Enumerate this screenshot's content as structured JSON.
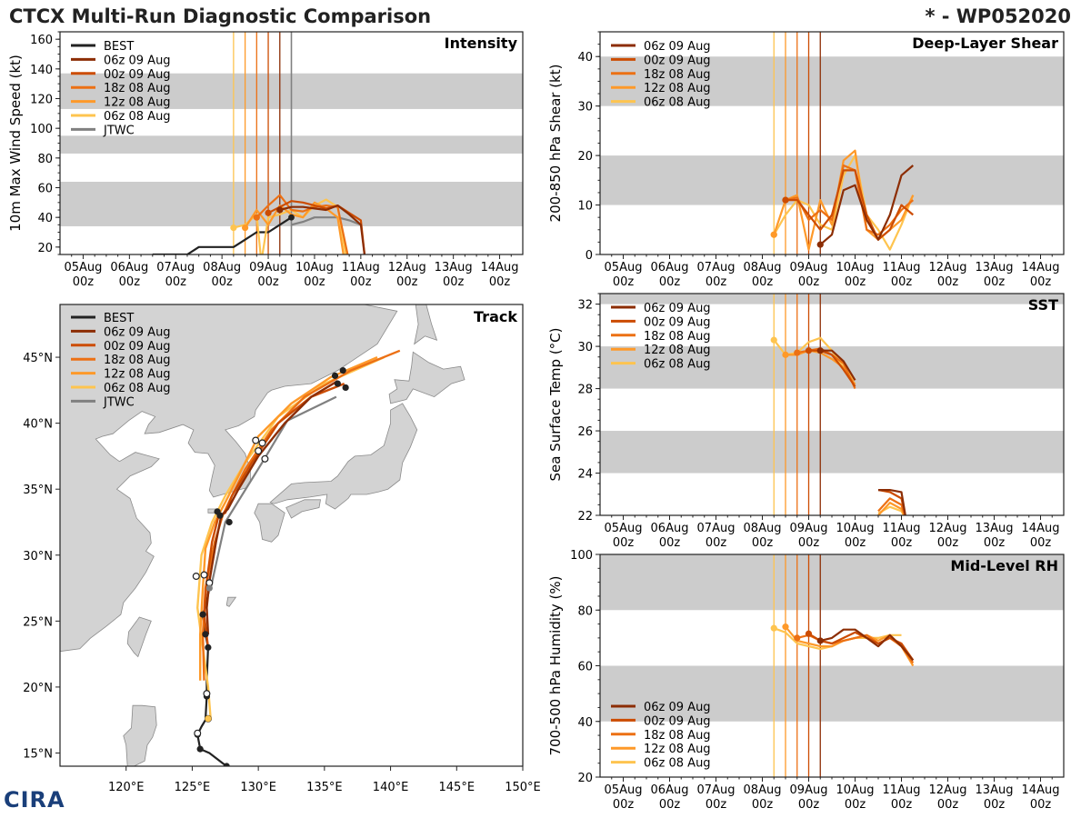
{
  "header": {
    "title": "CTCX Multi-Run Diagnostic Comparison",
    "storm": "* - WP052020"
  },
  "logo_text": "CIRA",
  "runs": [
    {
      "name": "06z 09 Aug",
      "color": "#8c2d04",
      "init": 4.25
    },
    {
      "name": "00z 09 Aug",
      "color": "#cc4c02",
      "init": 4.0
    },
    {
      "name": "18z 08 Aug",
      "color": "#ec7014",
      "init": 3.75
    },
    {
      "name": "12z 08 Aug",
      "color": "#fe9929",
      "init": 3.5
    },
    {
      "name": "06z 08 Aug",
      "color": "#fec44f",
      "init": 3.25
    }
  ],
  "best_color": "#222222",
  "jtwc_color": "#808080",
  "time_ticks": [
    {
      "day": "05Aug",
      "hour": "00z"
    },
    {
      "day": "06Aug",
      "hour": "00z"
    },
    {
      "day": "07Aug",
      "hour": "00z"
    },
    {
      "day": "08Aug",
      "hour": "00z"
    },
    {
      "day": "09Aug",
      "hour": "00z"
    },
    {
      "day": "10Aug",
      "hour": "00z"
    },
    {
      "day": "11Aug",
      "hour": "00z"
    },
    {
      "day": "12Aug",
      "hour": "00z"
    },
    {
      "day": "13Aug",
      "hour": "00z"
    },
    {
      "day": "14Aug",
      "hour": "00z"
    }
  ],
  "chart_data": [
    {
      "id": "intensity",
      "type": "line",
      "title": "Intensity",
      "ylabel": "10m Max Wind Speed (kt)",
      "xlim": [
        -0.5,
        9.5
      ],
      "ylim": [
        15,
        165
      ],
      "yticks": [
        20,
        40,
        60,
        80,
        100,
        120,
        140,
        160
      ],
      "bands": [
        [
          34,
          64
        ],
        [
          83,
          95
        ],
        [
          113,
          137
        ]
      ],
      "jtwc_vline": 4.5,
      "legend": [
        "BEST",
        "06z 09 Aug",
        "00z 09 Aug",
        "18z 08 Aug",
        "12z 08 Aug",
        "06z 08 Aug",
        "JTWC"
      ],
      "best": {
        "x": [
          1.5,
          1.75,
          2.0,
          2.25,
          2.5,
          2.75,
          3.0,
          3.25,
          3.5,
          3.75,
          4.0,
          4.25,
          4.5
        ],
        "y": [
          15,
          15,
          15,
          15,
          20,
          20,
          20,
          20,
          25,
          30,
          30,
          35,
          40
        ]
      },
      "jtwc": {
        "x": [
          4.5,
          4.75,
          5.0,
          5.25,
          5.5,
          5.75,
          6.0
        ],
        "y": [
          35,
          37,
          40,
          40,
          40,
          38,
          35
        ]
      },
      "series": [
        {
          "x": [
            4.25,
            4.5,
            4.75,
            5.0,
            5.25,
            5.5,
            5.75,
            6.0,
            6.1
          ],
          "y": [
            45,
            47,
            47,
            46,
            45,
            48,
            42,
            35,
            10
          ]
        },
        {
          "x": [
            4.0,
            4.25,
            4.5,
            4.75,
            5.0,
            5.25,
            5.5,
            5.75,
            6.0,
            6.1
          ],
          "y": [
            43,
            47,
            51,
            50,
            48,
            46,
            48,
            43,
            38,
            10
          ]
        },
        {
          "x": [
            3.75,
            4.0,
            4.25,
            4.5,
            4.75,
            5.0,
            5.25,
            5.5,
            5.75
          ],
          "y": [
            40,
            48,
            55,
            45,
            44,
            47,
            48,
            47,
            10
          ]
        },
        {
          "x": [
            3.5,
            3.75,
            4.0,
            4.25,
            4.5,
            4.75,
            5.0,
            5.25,
            5.5,
            5.65
          ],
          "y": [
            33,
            45,
            35,
            48,
            42,
            40,
            50,
            46,
            40,
            10
          ]
        },
        {
          "x": [
            3.25,
            3.5,
            3.75,
            3.85,
            4.0,
            4.25,
            4.5,
            4.75,
            5.0,
            5.25,
            5.5,
            5.7
          ],
          "y": [
            33,
            35,
            42,
            10,
            40,
            42,
            45,
            40,
            48,
            52,
            47,
            10
          ]
        }
      ]
    },
    {
      "id": "shear",
      "type": "line",
      "title": "Deep-Layer Shear",
      "ylabel": "200-850 hPa Shear (kt)",
      "xlim": [
        -0.5,
        9.5
      ],
      "ylim": [
        0,
        45
      ],
      "yticks": [
        0,
        10,
        20,
        30,
        40
      ],
      "bands": [
        [
          10,
          20
        ],
        [
          30,
          40
        ]
      ],
      "legend": [
        "06z 09 Aug",
        "00z 09 Aug",
        "18z 08 Aug",
        "12z 08 Aug",
        "06z 08 Aug"
      ],
      "series": [
        {
          "x": [
            4.25,
            4.5,
            4.75,
            5.0,
            5.25,
            5.5,
            5.75,
            6.0,
            6.25
          ],
          "y": [
            2,
            4,
            13,
            14,
            7,
            3,
            8,
            16,
            18
          ]
        },
        {
          "x": [
            3.5,
            3.75,
            4.0,
            4.25,
            4.5,
            4.75,
            5.0,
            5.25,
            5.5,
            5.75,
            6.0,
            6.25
          ],
          "y": [
            11,
            11,
            8,
            5,
            8,
            17,
            17,
            8,
            3,
            5,
            10,
            8
          ]
        },
        {
          "x": [
            3.5,
            3.75,
            4.0,
            4.25,
            4.5,
            4.75,
            5.0,
            5.25,
            5.5,
            5.75,
            6.0,
            6.25
          ],
          "y": [
            11,
            11.5,
            7,
            9,
            7,
            18,
            17,
            5,
            4,
            6,
            9,
            11
          ]
        },
        {
          "x": [
            3.25,
            3.5,
            3.75,
            4.0,
            4.25,
            4.5,
            4.75,
            5.0,
            5.25,
            5.5,
            5.75,
            6.0,
            6.25
          ],
          "y": [
            4,
            11,
            12,
            1,
            11,
            6,
            19,
            21,
            5,
            3,
            5,
            7,
            12
          ]
        },
        {
          "x": [
            3.25,
            3.5,
            3.75,
            4.0,
            4.25,
            4.5,
            4.75,
            5.0,
            5.25,
            5.5,
            5.75,
            6.0,
            6.25
          ],
          "y": [
            4,
            8,
            11,
            10,
            6,
            5,
            16,
            20,
            8,
            5,
            1,
            6,
            12
          ]
        }
      ]
    },
    {
      "id": "sst",
      "type": "line",
      "title": "SST",
      "ylabel": "Sea Surface Temp (°C)",
      "xlim": [
        -0.5,
        9.5
      ],
      "ylim": [
        22,
        32.5
      ],
      "yticks": [
        22,
        24,
        26,
        28,
        30,
        32
      ],
      "bands": [
        [
          24,
          26
        ],
        [
          28,
          30
        ],
        [
          32,
          34
        ]
      ],
      "legend": [
        "06z 09 Aug",
        "00z 09 Aug",
        "18z 08 Aug",
        "12z 08 Aug",
        "06z 08 Aug"
      ],
      "series": [
        {
          "x": [
            4.25,
            4.5,
            4.75,
            5.0
          ],
          "y": [
            29.8,
            29.8,
            29.3,
            28.4
          ],
          "x2": [
            5.5,
            5.75,
            6.0,
            6.1
          ],
          "y2": [
            23.2,
            23.2,
            23.1,
            21.8
          ]
        },
        {
          "x": [
            4.0,
            4.25,
            4.5,
            4.75,
            5.0
          ],
          "y": [
            29.8,
            29.8,
            29.6,
            28.9,
            28.1
          ],
          "x2": [
            5.5,
            5.75,
            6.0,
            6.1
          ],
          "y2": [
            23.2,
            23.1,
            22.8,
            21.8
          ]
        },
        {
          "x": [
            3.75,
            4.0,
            4.25,
            4.5,
            4.75,
            5.0
          ],
          "y": [
            29.7,
            29.8,
            29.9,
            29.6,
            29.2,
            28.0
          ],
          "x2": [
            5.5,
            5.75,
            6.0,
            6.1
          ],
          "y2": [
            22.2,
            22.8,
            22.5,
            21.8
          ]
        },
        {
          "x": [
            3.5,
            3.75,
            4.0,
            4.25,
            4.5,
            4.75,
            5.0
          ],
          "y": [
            29.6,
            29.6,
            29.8,
            29.7,
            29.4,
            29.0,
            28.2
          ],
          "x2": [
            5.5,
            5.75,
            6.0,
            6.1
          ],
          "y2": [
            22.0,
            22.6,
            22.3,
            21.8
          ]
        },
        {
          "x": [
            3.25,
            3.5,
            3.75,
            4.0,
            4.25,
            4.5,
            4.75,
            5.0
          ],
          "y": [
            30.3,
            29.6,
            29.7,
            30.2,
            30.4,
            29.8,
            29.0,
            28.4
          ],
          "x2": [
            5.5,
            5.75,
            6.0,
            6.1
          ],
          "y2": [
            22.1,
            22.4,
            22.2,
            21.8
          ]
        }
      ]
    },
    {
      "id": "rh",
      "type": "line",
      "title": "Mid-Level RH",
      "ylabel": "700-500 hPa Humidity (%)",
      "xlim": [
        -0.5,
        9.5
      ],
      "ylim": [
        20,
        100
      ],
      "yticks": [
        20,
        40,
        60,
        80,
        100
      ],
      "bands": [
        [
          40,
          60
        ],
        [
          80,
          100
        ]
      ],
      "legend": [
        "06z 09 Aug",
        "00z 09 Aug",
        "18z 08 Aug",
        "12z 08 Aug",
        "06z 08 Aug"
      ],
      "series": [
        {
          "x": [
            4.25,
            4.5,
            4.75,
            5.0,
            5.25,
            5.5,
            5.75,
            6.0,
            6.25
          ],
          "y": [
            69,
            70,
            73,
            73,
            70,
            67,
            71,
            67,
            62
          ]
        },
        {
          "x": [
            4.0,
            4.25,
            4.5,
            4.75,
            5.0,
            5.25,
            5.5,
            5.75,
            6.0,
            6.25
          ],
          "y": [
            71.5,
            69,
            68,
            70,
            72,
            70,
            68,
            70,
            68,
            62
          ]
        },
        {
          "x": [
            3.75,
            4.0,
            4.25,
            4.5,
            4.75,
            5.0,
            5.25,
            5.5,
            5.75,
            6.0,
            6.25
          ],
          "y": [
            70,
            71,
            69,
            68,
            69,
            70,
            71,
            68,
            70,
            67,
            61
          ]
        },
        {
          "x": [
            3.5,
            3.75,
            4.0,
            4.25,
            4.5,
            4.75,
            5.0,
            5.25,
            5.5,
            5.75,
            6.0,
            6.25
          ],
          "y": [
            74,
            69,
            68,
            67,
            67,
            69,
            70,
            71,
            69,
            71,
            67,
            60
          ]
        },
        {
          "x": [
            3.25,
            3.5,
            3.75,
            4.0,
            4.25,
            4.5,
            4.75,
            5.0,
            5.25,
            5.5,
            5.75,
            6.0
          ],
          "y": [
            73.5,
            72,
            68,
            67,
            66,
            67,
            69,
            70,
            70,
            70,
            71,
            71
          ]
        }
      ]
    },
    {
      "id": "track",
      "type": "map",
      "title": "Track",
      "lon_range": [
        115,
        150
      ],
      "lat_range": [
        14,
        49
      ],
      "lon_ticks": [
        "120°E",
        "125°E",
        "130°E",
        "135°E",
        "140°E",
        "145°E",
        "150°E"
      ],
      "lon_values": [
        120,
        125,
        130,
        135,
        140,
        145,
        150
      ],
      "lat_ticks": [
        "15°N",
        "20°N",
        "25°N",
        "30°N",
        "35°N",
        "40°N",
        "45°N"
      ],
      "lat_values": [
        15,
        20,
        25,
        30,
        35,
        40,
        45
      ],
      "legend": [
        "BEST",
        "06z 09 Aug",
        "00z 09 Aug",
        "18z 08 Aug",
        "12z 08 Aug",
        "06z 08 Aug",
        "JTWC"
      ],
      "best": {
        "lon": [
          127.6,
          126.3,
          125.6,
          125.4,
          125.7,
          126.0,
          126.1,
          126.1,
          126.2,
          126.0,
          125.8,
          126.1,
          126.3
        ],
        "lat": [
          14.0,
          15.0,
          15.3,
          16.4,
          17.0,
          17.5,
          19.3,
          20.5,
          23.0,
          24.0,
          25.5,
          26.5,
          27.5
        ],
        "dots": [
          0,
          2,
          3,
          6,
          8,
          9,
          10
        ]
      },
      "jtwc": {
        "lon": [
          126.4,
          127.5,
          130.4,
          132.2,
          135.9
        ],
        "lat": [
          27.5,
          32.5,
          37.2,
          40.2,
          42.0
        ]
      },
      "series": [
        {
          "lon": [
            126.2,
            126.1,
            126.3,
            126.8,
            127.2,
            127.7,
            128.5,
            130.0,
            132.0,
            134.0,
            136.0
          ],
          "lat": [
            24.0,
            26.0,
            28.0,
            31.0,
            33.0,
            33.5,
            35.0,
            37.5,
            40.0,
            42.0,
            43.2
          ]
        },
        {
          "lon": [
            126.2,
            125.9,
            126.1,
            126.5,
            127.0,
            127.5,
            128.0,
            129.5,
            131.5,
            134.0,
            136.5
          ],
          "lat": [
            23.0,
            25.5,
            28.0,
            31.0,
            33.0,
            33.2,
            34.5,
            37.0,
            40.0,
            42.0,
            43.0
          ]
        },
        {
          "lon": [
            125.9,
            125.8,
            126.0,
            126.7,
            127.3,
            128.0,
            129.0,
            131.0,
            133.5,
            137.0,
            140.7
          ],
          "lat": [
            20.5,
            24.0,
            27.5,
            31.0,
            33.0,
            34.5,
            36.5,
            39.5,
            42.0,
            44.0,
            45.5
          ]
        },
        {
          "lon": [
            125.6,
            125.6,
            125.8,
            126.0,
            126.7,
            127.5,
            128.5,
            130.0,
            132.5,
            135.5,
            139.0
          ],
          "lat": [
            20.5,
            24.0,
            27.5,
            30.5,
            32.5,
            34.0,
            36.0,
            39.0,
            41.5,
            43.5,
            45.0
          ]
        },
        {
          "lon": [
            126.4,
            126.2,
            125.8,
            125.4,
            125.7,
            126.5,
            127.5,
            129.0,
            131.5,
            135.0,
            139.5
          ],
          "lat": [
            17.5,
            20.0,
            23.0,
            26.0,
            30.0,
            32.5,
            34.5,
            37.0,
            40.5,
            43.0,
            45.0
          ]
        }
      ],
      "end_dots": [
        {
          "lon": 127.1,
          "lat": 33.0
        },
        {
          "lon": 127.8,
          "lat": 32.5
        },
        {
          "lon": 126.9,
          "lat": 33.3
        },
        {
          "lon": 136.0,
          "lat": 43.0
        },
        {
          "lon": 136.6,
          "lat": 42.7
        },
        {
          "lon": 136.4,
          "lat": 44.0
        },
        {
          "lon": 135.8,
          "lat": 43.6
        }
      ],
      "open_dots": [
        {
          "lon": 125.3,
          "lat": 28.4
        },
        {
          "lon": 125.9,
          "lat": 28.5
        },
        {
          "lon": 126.3,
          "lat": 27.9
        },
        {
          "lon": 126.1,
          "lat": 19.5
        },
        {
          "lon": 126.2,
          "lat": 17.6
        },
        {
          "lon": 125.4,
          "lat": 16.5
        },
        {
          "lon": 129.8,
          "lat": 38.7
        },
        {
          "lon": 130.3,
          "lat": 38.5
        },
        {
          "lon": 130.5,
          "lat": 37.3
        },
        {
          "lon": 130.0,
          "lat": 37.9
        }
      ]
    }
  ]
}
